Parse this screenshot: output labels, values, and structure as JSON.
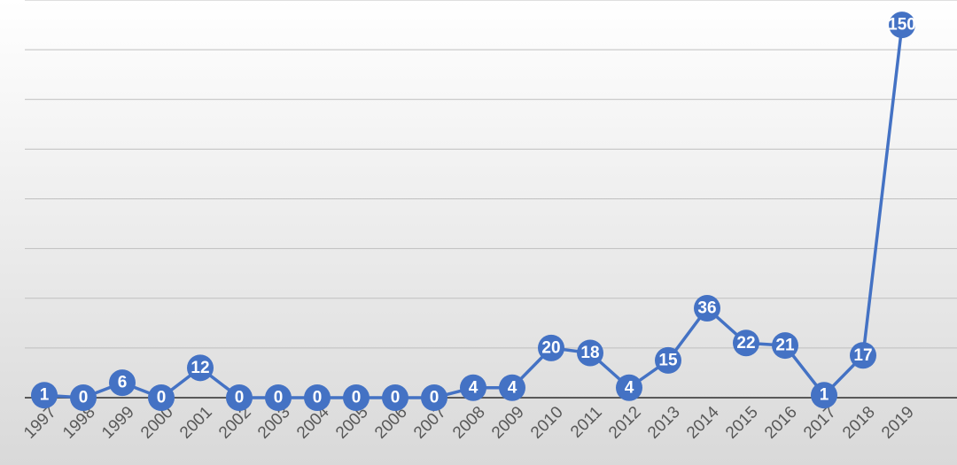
{
  "chart_data": {
    "type": "line",
    "categories": [
      "1997",
      "1998",
      "1999",
      "2000",
      "2001",
      "2002",
      "2003",
      "2004",
      "2005",
      "2006",
      "2007",
      "2008",
      "2009",
      "2010",
      "2011",
      "2012",
      "2013",
      "2014",
      "2015",
      "2016",
      "2017",
      "2018",
      "2019"
    ],
    "values": [
      1,
      0,
      6,
      0,
      12,
      0,
      0,
      0,
      0,
      0,
      0,
      4,
      4,
      20,
      18,
      4,
      15,
      36,
      22,
      21,
      1,
      17,
      150
    ],
    "color": "#4472c4",
    "ylim": [
      0,
      160
    ],
    "yticks": [
      0,
      20,
      40,
      60,
      80,
      100,
      120,
      140,
      160
    ],
    "grid": true
  }
}
